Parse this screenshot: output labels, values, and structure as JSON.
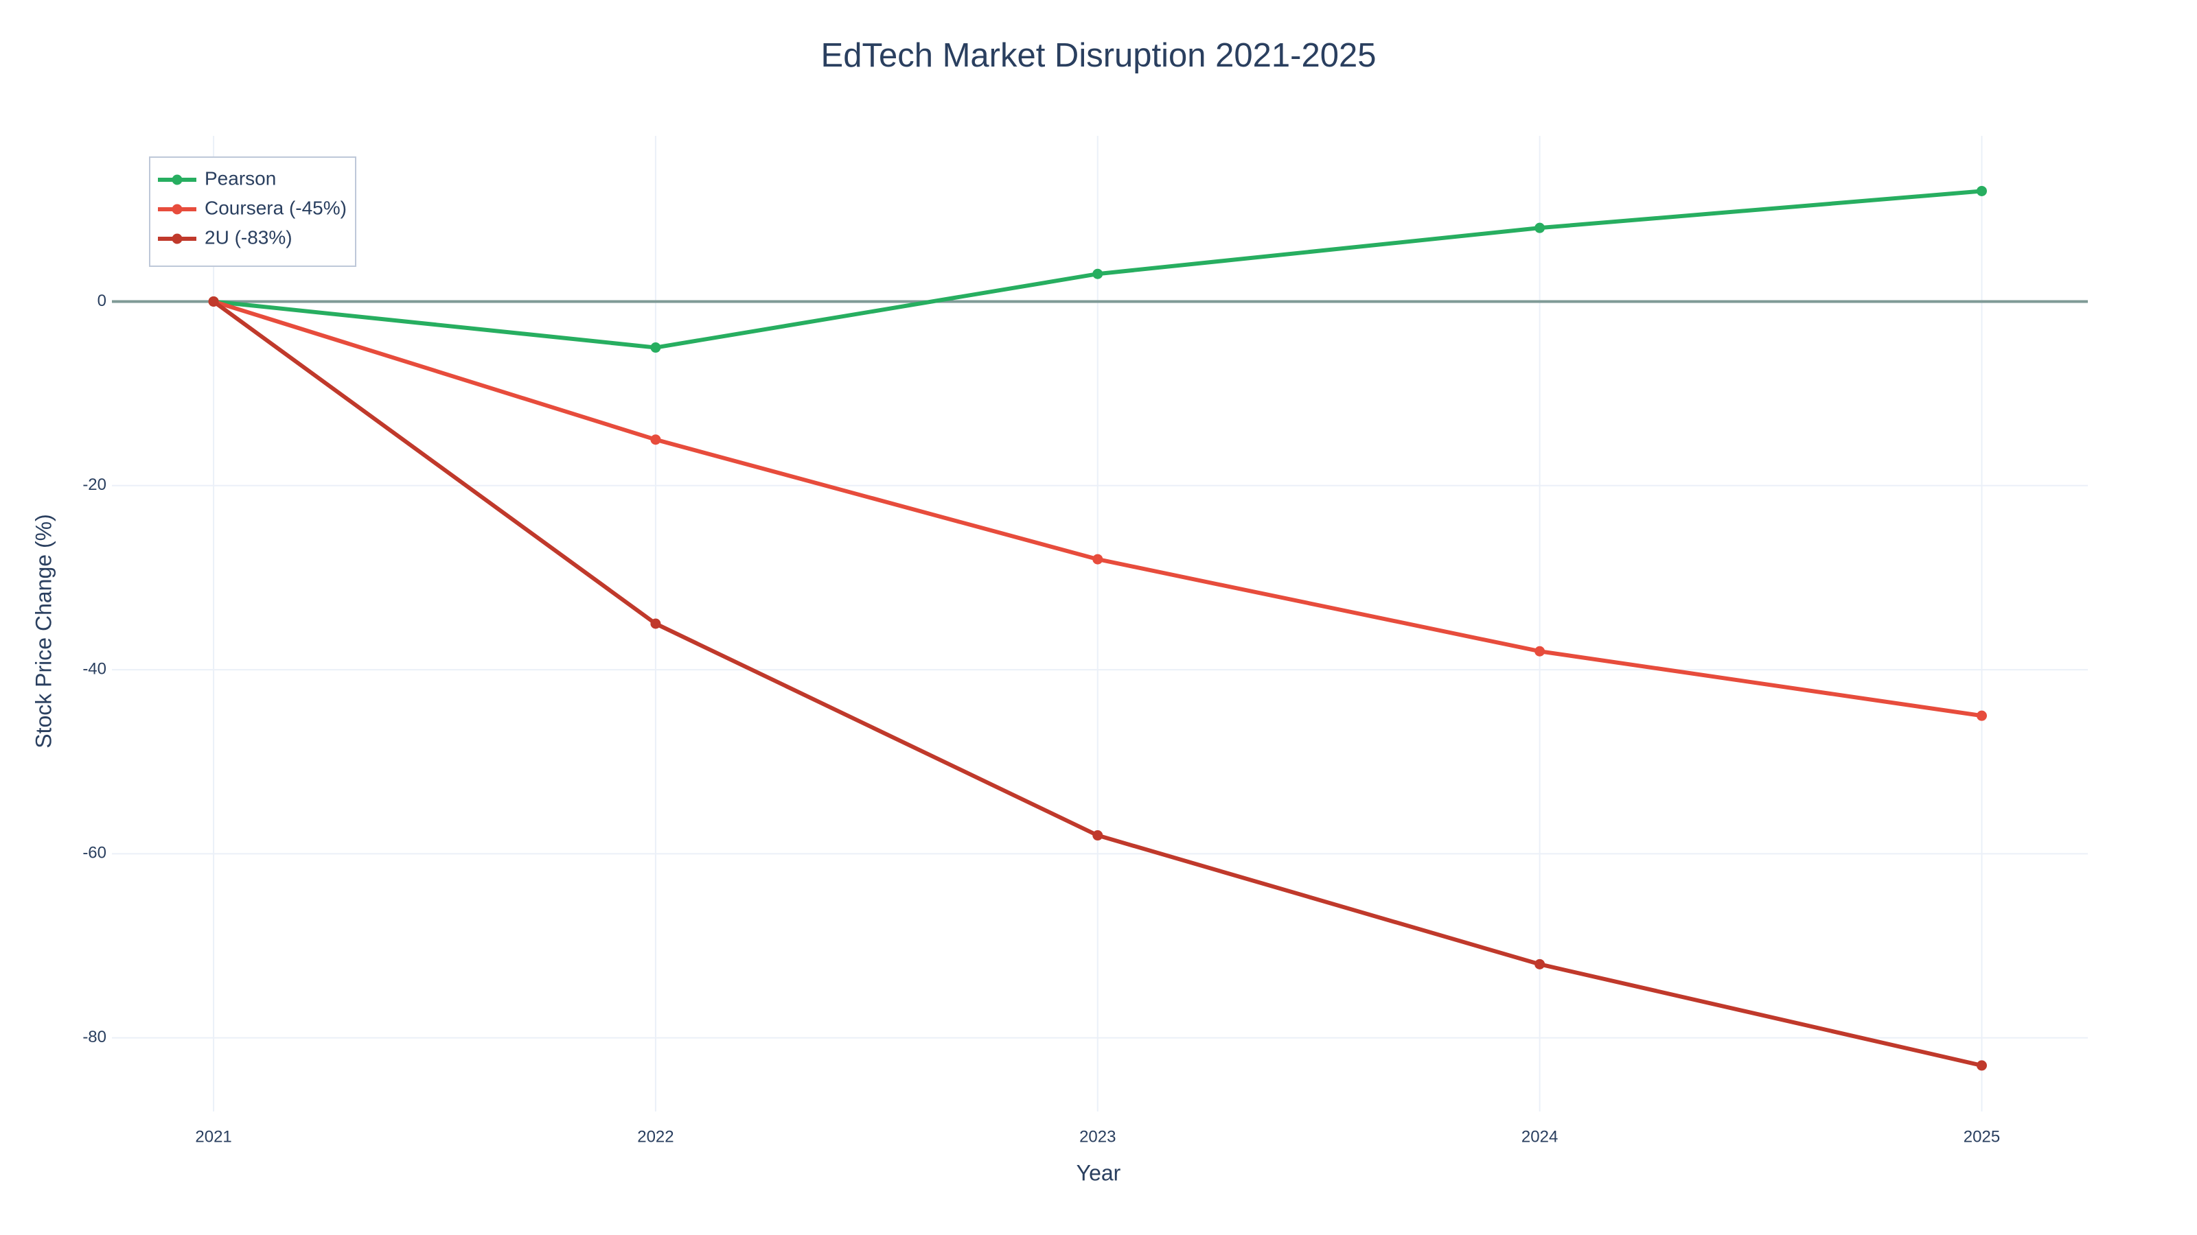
{
  "chart_data": {
    "type": "line",
    "title": "EdTech Market Disruption 2021-2025",
    "x_label": "Year",
    "y_label": "Stock Price Change (%)",
    "x": [
      2021,
      2022,
      2023,
      2024,
      2025
    ],
    "series": [
      {
        "name": "Pearson",
        "color": "#27ae60",
        "values": [
          0,
          -5,
          3,
          8,
          12
        ]
      },
      {
        "name": "Coursera (-45%)",
        "color": "#e74c3c",
        "values": [
          0,
          -15,
          -28,
          -38,
          -45
        ]
      },
      {
        "name": "2U (-83%)",
        "color": "#c0392b",
        "values": [
          0,
          -35,
          -58,
          -72,
          -83
        ]
      }
    ],
    "xlim": [
      2020.77,
      2025.24
    ],
    "xticks": [
      2021,
      2022,
      2023,
      2024,
      2025
    ],
    "ylim": [
      -88,
      18
    ],
    "yticks": [
      0,
      -20,
      -40,
      -60,
      -80
    ],
    "grid": true,
    "zeroline": true,
    "legend": "top-left"
  }
}
